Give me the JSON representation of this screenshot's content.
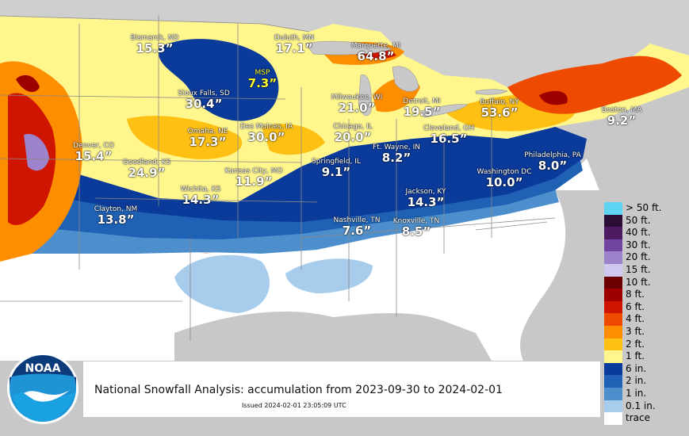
{
  "title": "National Snowfall Analysis: accumulation from 2023-09-30 to 2024-02-01",
  "issued": "Issued 2024-02-01 23:05:09 UTC",
  "logo_text": "NOAA",
  "legend": [
    {
      "label": "> 50 ft.",
      "color": "#5fd3f2"
    },
    {
      "label": "50 ft.",
      "color": "#2a0d35"
    },
    {
      "label": "40 ft.",
      "color": "#4e1b62"
    },
    {
      "label": "30 ft.",
      "color": "#7345a2"
    },
    {
      "label": "20 ft.",
      "color": "#9d83cc"
    },
    {
      "label": "15 ft.",
      "color": "#cfc8ef"
    },
    {
      "label": "10 ft.",
      "color": "#6c0000"
    },
    {
      "label": "8 ft.",
      "color": "#9e0000"
    },
    {
      "label": "6 ft.",
      "color": "#cf1400"
    },
    {
      "label": "4 ft.",
      "color": "#ee4a00"
    },
    {
      "label": "3 ft.",
      "color": "#fd8e00"
    },
    {
      "label": "2 ft.",
      "color": "#ffc014"
    },
    {
      "label": "1 ft.",
      "color": "#fff68e"
    },
    {
      "label": "6 in.",
      "color": "#0a3a9a"
    },
    {
      "label": "2 in.",
      "color": "#1f61b4"
    },
    {
      "label": "1 in.",
      "color": "#4d8fcc"
    },
    {
      "label": "0.1 in.",
      "color": "#a8ccec"
    },
    {
      "label": "trace",
      "color": "#ffffff"
    }
  ],
  "cities": [
    {
      "name": "Bismarck, ND",
      "value": "15.3”"
    },
    {
      "name": "Duluth, MN",
      "value": "17.1”"
    },
    {
      "name": "Marquette, MI",
      "value": "64.8”"
    },
    {
      "name": "MSP",
      "value": "7.3”",
      "highlight": true
    },
    {
      "name": "Sioux Falls, SD",
      "value": "30.4”"
    },
    {
      "name": "Milwaukee, WI",
      "value": "21.0”"
    },
    {
      "name": "Detroit, MI",
      "value": "19.5”"
    },
    {
      "name": "Buffalo, NY",
      "value": "53.6”"
    },
    {
      "name": "Boston, MA",
      "value": "9.2”"
    },
    {
      "name": "Omaha, NE",
      "value": "17.3”"
    },
    {
      "name": "Des Moines, IA",
      "value": "30.0”"
    },
    {
      "name": "Chicago, IL",
      "value": "20.0”"
    },
    {
      "name": "Cleveland, OH",
      "value": "16.5”"
    },
    {
      "name": "Denver, CO",
      "value": "15.4”"
    },
    {
      "name": "Goodland, KS",
      "value": "24.9”"
    },
    {
      "name": "Kansas City, MO",
      "value": "11.9”"
    },
    {
      "name": "Springfield, IL",
      "value": "9.1”"
    },
    {
      "name": "Ft. Wayne, IN",
      "value": "8.2”"
    },
    {
      "name": "Philadelphia, PA",
      "value": "8.0”"
    },
    {
      "name": "Wichita, KS",
      "value": "14.3”"
    },
    {
      "name": "Washington DC",
      "value": "10.0”"
    },
    {
      "name": "Jackson, KY",
      "value": "14.3”"
    },
    {
      "name": "Clayton, NM",
      "value": "13.8”"
    },
    {
      "name": "Nashville, TN",
      "value": "7.6”"
    },
    {
      "name": "Knoxville, TN",
      "value": "8.5”"
    }
  ]
}
